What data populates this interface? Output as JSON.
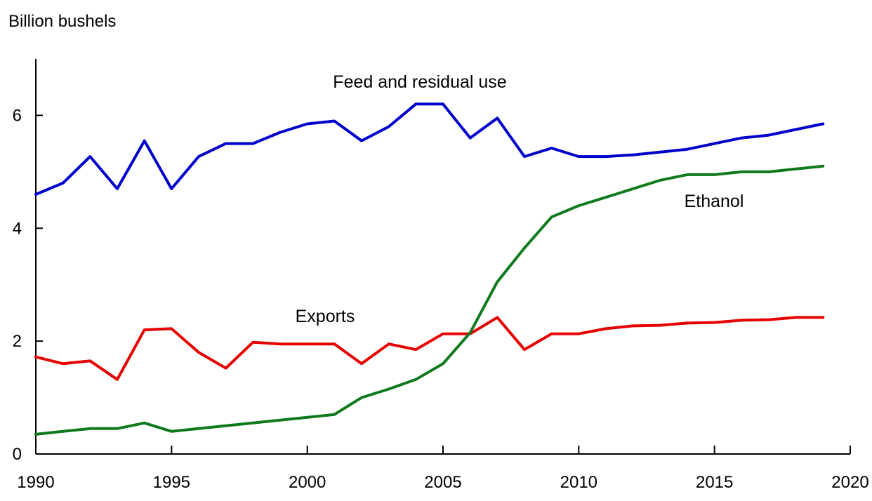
{
  "chart_data": {
    "type": "line",
    "title": "",
    "ylabel": "Billion bushels",
    "xlabel": "",
    "xlim": [
      1990,
      2020
    ],
    "ylim": [
      0,
      7
    ],
    "x_ticks": [
      1990,
      1995,
      2000,
      2005,
      2010,
      2015,
      2020
    ],
    "y_ticks": [
      0,
      2,
      4,
      6
    ],
    "x": [
      1990,
      1991,
      1992,
      1993,
      1994,
      1995,
      1996,
      1997,
      1998,
      1999,
      2000,
      2001,
      2002,
      2003,
      2004,
      2005,
      2006,
      2007,
      2008,
      2009,
      2010,
      2011,
      2012,
      2013,
      2014,
      2015,
      2016,
      2017,
      2018,
      2019
    ],
    "series": [
      {
        "name": "Feed and residual use",
        "color": "#0000cc",
        "values": [
          4.6,
          4.8,
          5.27,
          4.7,
          5.55,
          4.7,
          5.27,
          5.5,
          5.5,
          5.7,
          5.85,
          5.9,
          5.55,
          5.8,
          6.2,
          6.2,
          5.6,
          5.95,
          5.27,
          5.42,
          5.27,
          5.27,
          5.3,
          5.35,
          5.4,
          5.5,
          5.6,
          5.65,
          5.75,
          5.85
        ]
      },
      {
        "name": "Exports",
        "color": "#e60000",
        "values": [
          1.72,
          1.6,
          1.65,
          1.32,
          2.2,
          2.22,
          1.8,
          1.52,
          1.98,
          1.95,
          1.95,
          1.95,
          1.6,
          1.95,
          1.85,
          2.13,
          2.13,
          2.42,
          1.85,
          2.13,
          2.13,
          2.22,
          2.27,
          2.28,
          2.32,
          2.33,
          2.37,
          2.38,
          2.42,
          2.42
        ]
      },
      {
        "name": "Ethanol",
        "color": "#0f7a1c",
        "values": [
          0.35,
          0.4,
          0.45,
          0.45,
          0.55,
          0.4,
          0.45,
          0.5,
          0.55,
          0.6,
          0.65,
          0.7,
          1.0,
          1.15,
          1.32,
          1.6,
          2.15,
          3.05,
          3.65,
          4.2,
          4.4,
          4.55,
          4.7,
          4.85,
          4.95,
          4.95,
          5.0,
          5.0,
          5.05,
          5.1
        ]
      }
    ],
    "legend": "inline labels"
  }
}
